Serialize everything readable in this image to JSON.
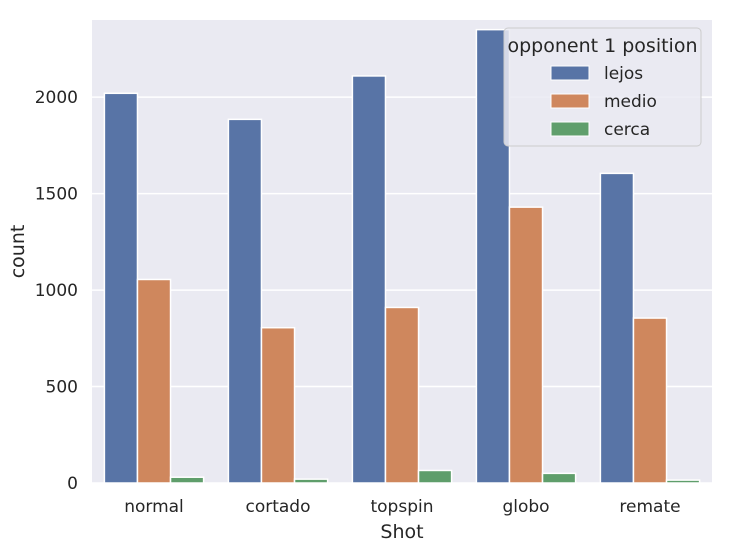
{
  "chart_data": {
    "type": "bar",
    "categories": [
      "normal",
      "cortado",
      "topspin",
      "globo",
      "remate"
    ],
    "series": [
      {
        "name": "lejos",
        "values": [
          2020,
          1885,
          2110,
          2350,
          1605
        ],
        "color": "#5874a6"
      },
      {
        "name": "medio",
        "values": [
          1055,
          805,
          910,
          1430,
          855
        ],
        "color": "#cf875d"
      },
      {
        "name": "cerca",
        "values": [
          30,
          20,
          65,
          50,
          15
        ],
        "color": "#5f9e6b"
      }
    ],
    "xlabel": "Shot",
    "ylabel": "count",
    "ylim": [
      0,
      2400
    ],
    "yticks": [
      0,
      500,
      1000,
      1500,
      2000
    ],
    "grid": true,
    "legend": {
      "title": "opponent 1 position",
      "placement": "top-right"
    },
    "background_color": "#eaeaf2",
    "grid_color": "#ffffff"
  }
}
